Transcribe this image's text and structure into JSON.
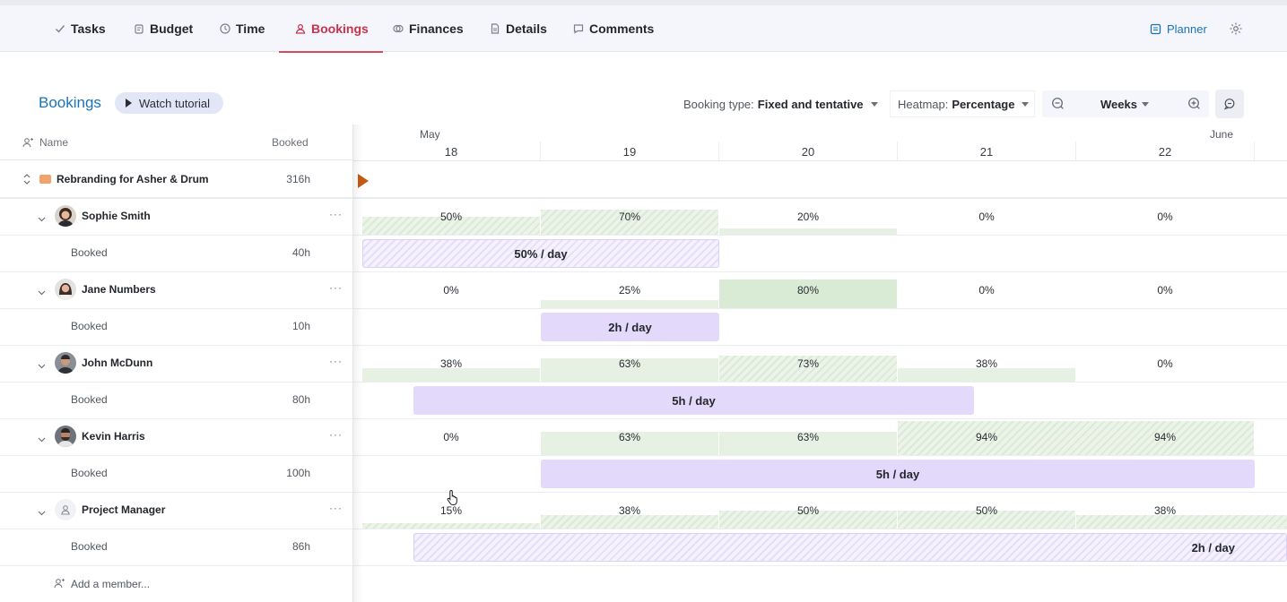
{
  "nav": {
    "tabs": [
      {
        "label": "Tasks",
        "icon": "check-icon"
      },
      {
        "label": "Budget",
        "icon": "budget-icon"
      },
      {
        "label": "Time",
        "icon": "clock-icon"
      },
      {
        "label": "Bookings",
        "icon": "user-icon",
        "active": true
      },
      {
        "label": "Finances",
        "icon": "finances-icon"
      },
      {
        "label": "Details",
        "icon": "document-icon"
      },
      {
        "label": "Comments",
        "icon": "comment-icon"
      }
    ],
    "planner_label": "Planner",
    "active_color": "#c8324b",
    "link_color": "#1a73b8"
  },
  "toolbar": {
    "title": "Bookings",
    "tutorial_label": "Watch tutorial",
    "booking_type_label": "Booking type:",
    "booking_type_value": "Fixed and tentative",
    "heatmap_label": "Heatmap:",
    "heatmap_value": "Percentage",
    "scale_value": "Weeks"
  },
  "table": {
    "name_header": "Name",
    "booked_header": "Booked",
    "project": {
      "name": "Rebranding for Asher & Drum",
      "hours": "316h"
    },
    "members": [
      {
        "name": "Sophie Smith",
        "booked_label": "Booked",
        "hours": "40h",
        "pcts": [
          "50%",
          "70%",
          "20%",
          "0%",
          "0%"
        ],
        "bar_label": "50% / day"
      },
      {
        "name": "Jane Numbers",
        "booked_label": "Booked",
        "hours": "10h",
        "pcts": [
          "0%",
          "25%",
          "80%",
          "0%",
          "0%"
        ],
        "bar_label": "2h / day"
      },
      {
        "name": "John McDunn",
        "booked_label": "Booked",
        "hours": "80h",
        "pcts": [
          "38%",
          "63%",
          "73%",
          "38%",
          "0%"
        ],
        "bar_label": "5h / day"
      },
      {
        "name": "Kevin Harris",
        "booked_label": "Booked",
        "hours": "100h",
        "pcts": [
          "0%",
          "63%",
          "63%",
          "94%",
          "94%"
        ],
        "bar_label": "5h / day"
      },
      {
        "name": "Project Manager",
        "booked_label": "Booked",
        "hours": "86h",
        "pcts": [
          "15%",
          "38%",
          "50%",
          "50%",
          "38%"
        ],
        "bar_label": "2h / day"
      }
    ],
    "add_member_label": "Add a member..."
  },
  "timeline": {
    "months": [
      "May",
      "June"
    ],
    "weeks": [
      "18",
      "19",
      "20",
      "21",
      "22"
    ]
  }
}
